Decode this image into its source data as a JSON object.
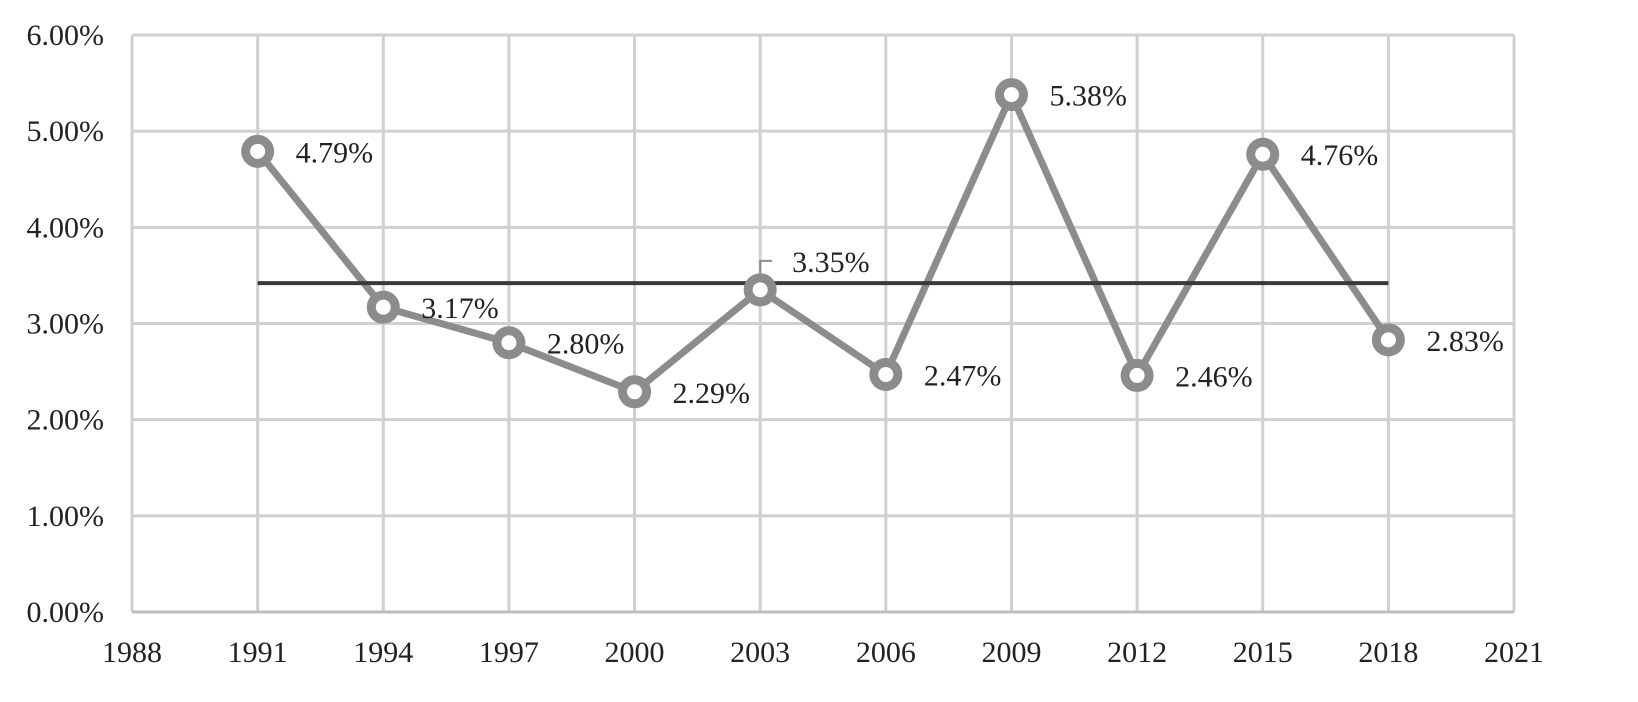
{
  "chart_data": {
    "type": "line",
    "title": "",
    "xlabel": "",
    "ylabel": "",
    "xlim": [
      1988,
      2021
    ],
    "ylim": [
      0,
      0.06
    ],
    "x_ticks": [
      "1988",
      "1991",
      "1994",
      "1997",
      "2000",
      "2003",
      "2006",
      "2009",
      "2012",
      "2015",
      "2018",
      "2021"
    ],
    "y_ticks": [
      "0.00%",
      "1.00%",
      "2.00%",
      "3.00%",
      "4.00%",
      "5.00%",
      "6.00%"
    ],
    "grid": true,
    "legend": "none",
    "series": [
      {
        "x": [
          1991,
          1994,
          1997,
          2000,
          2003,
          2006,
          2009,
          2012,
          2015,
          2018
        ],
        "values": [
          0.0479,
          0.0317,
          0.028,
          0.0229,
          0.0335,
          0.0247,
          0.0538,
          0.0246,
          0.0476,
          0.0283
        ],
        "labels": [
          "4.79%",
          "3.17%",
          "2.80%",
          "2.29%",
          "3.35%",
          "2.47%",
          "5.38%",
          "2.46%",
          "4.76%",
          "2.83%"
        ],
        "color": "#8c8c8c",
        "marker": "ring"
      },
      {
        "x": [
          1991,
          2018
        ],
        "values": [
          0.0342,
          0.0342
        ],
        "color": "#3a3a3a",
        "style": "trend line"
      }
    ]
  }
}
